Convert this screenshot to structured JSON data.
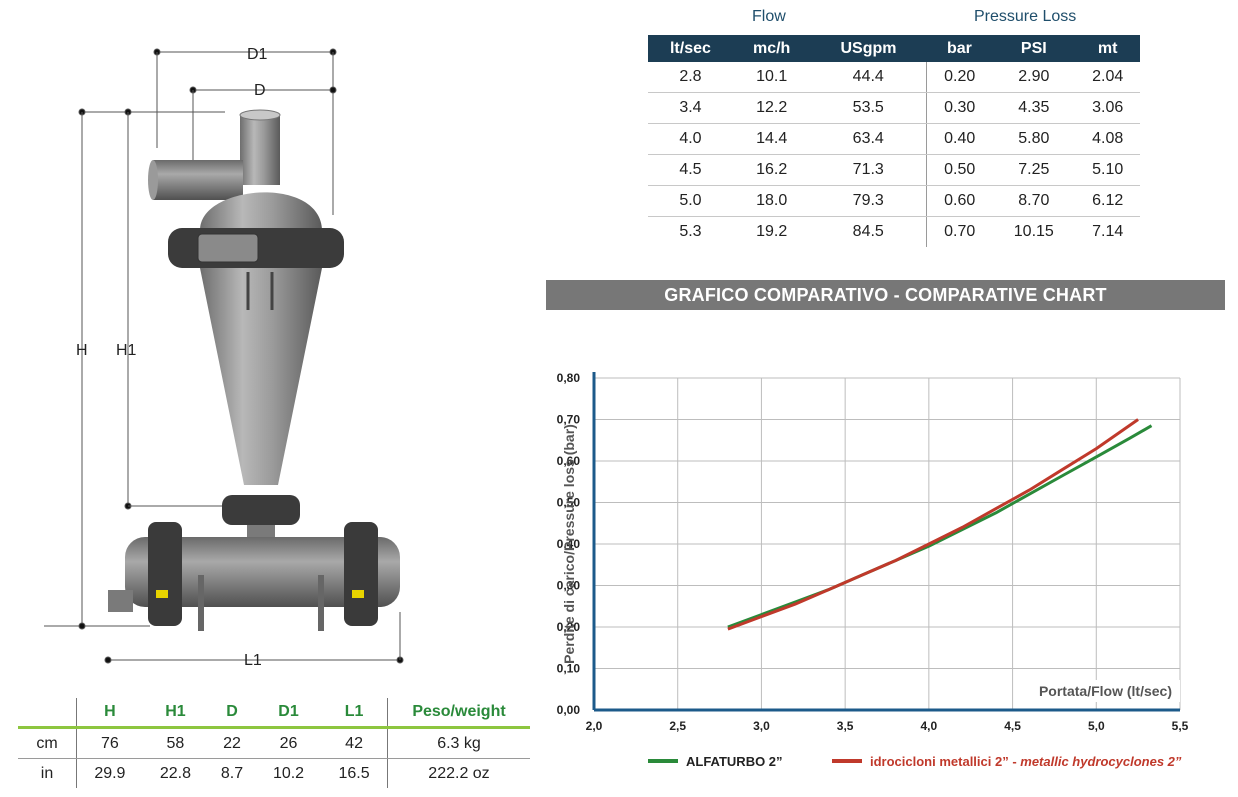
{
  "dimensions": {
    "labels": {
      "D1": "D1",
      "D": "D",
      "H": "H",
      "H1": "H1",
      "L1": "L1"
    },
    "table": {
      "columns": [
        "H",
        "H1",
        "D",
        "D1",
        "L1"
      ],
      "weight_header": "Peso/weight",
      "rows": [
        {
          "unit": "cm",
          "values": [
            "76",
            "58",
            "22",
            "26",
            "42"
          ],
          "weight": "6.3 kg"
        },
        {
          "unit": "in",
          "values": [
            "29.9",
            "22.8",
            "8.7",
            "10.2",
            "16.5"
          ],
          "weight": "222.2 oz"
        }
      ]
    }
  },
  "flow_table": {
    "group_headers": {
      "flow": "Flow",
      "pressure_loss": "Pressure Loss"
    },
    "columns": [
      "lt/sec",
      "mc/h",
      "USgpm",
      "bar",
      "PSI",
      "mt"
    ],
    "rows": [
      [
        "2.8",
        "10.1",
        "44.4",
        "0.20",
        "2.90",
        "2.04"
      ],
      [
        "3.4",
        "12.2",
        "53.5",
        "0.30",
        "4.35",
        "3.06"
      ],
      [
        "4.0",
        "14.4",
        "63.4",
        "0.40",
        "5.80",
        "4.08"
      ],
      [
        "4.5",
        "16.2",
        "71.3",
        "0.50",
        "7.25",
        "5.10"
      ],
      [
        "5.0",
        "18.0",
        "79.3",
        "0.60",
        "8.70",
        "6.12"
      ],
      [
        "5.3",
        "19.2",
        "84.5",
        "0.70",
        "10.15",
        "7.14"
      ]
    ]
  },
  "chart_title": "GRAFICO COMPARATIVO - COMPARATIVE CHART",
  "chart_data": {
    "type": "line",
    "title": "GRAFICO COMPARATIVO - COMPARATIVE CHART",
    "xlabel": "Portata/Flow (lt/sec)",
    "ylabel": "Perdite di carico/Pressure loss (bar)",
    "xlim": [
      2.0,
      5.5
    ],
    "ylim": [
      0.0,
      0.8
    ],
    "x_ticks": [
      "2,0",
      "2,5",
      "3,0",
      "3,5",
      "4,0",
      "4,5",
      "5,0",
      "5,5"
    ],
    "y_ticks": [
      "0,00",
      "0,10",
      "0,20",
      "0,30",
      "0,40",
      "0,50",
      "0,60",
      "0,70",
      "0,80"
    ],
    "grid": true,
    "legend_position": "bottom",
    "series": [
      {
        "name": "ALFATURBO 2”",
        "color": "#2a8a3a",
        "x": [
          2.8,
          3.0,
          3.2,
          3.4,
          3.6,
          3.8,
          4.0,
          4.2,
          4.4,
          4.6,
          4.8,
          5.0,
          5.2,
          5.33
        ],
        "y": [
          0.2,
          0.23,
          0.26,
          0.29,
          0.325,
          0.36,
          0.395,
          0.435,
          0.475,
          0.52,
          0.565,
          0.61,
          0.655,
          0.685
        ]
      },
      {
        "name_normal": "idrocicloni metallici 2” - ",
        "name_italic": "metallic hydrocyclones 2”",
        "color": "#c0392b",
        "x": [
          2.8,
          3.0,
          3.2,
          3.4,
          3.6,
          3.8,
          4.0,
          4.2,
          4.4,
          4.6,
          4.8,
          5.0,
          5.25
        ],
        "y": [
          0.195,
          0.225,
          0.255,
          0.29,
          0.325,
          0.36,
          0.4,
          0.44,
          0.485,
          0.53,
          0.58,
          0.63,
          0.7
        ]
      }
    ]
  }
}
